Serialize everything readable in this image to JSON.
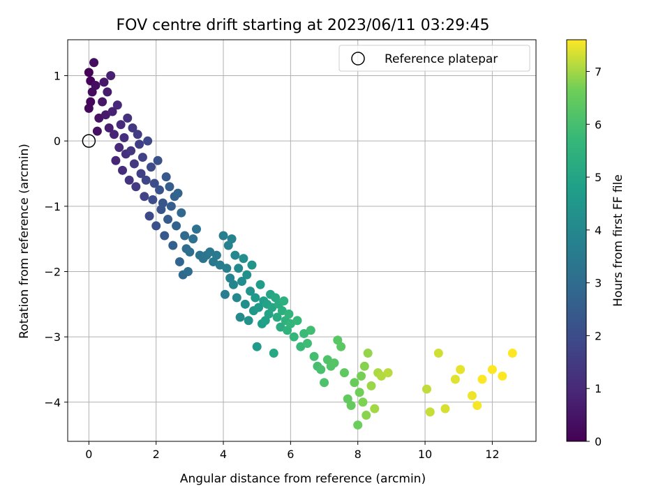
{
  "chart_data": {
    "type": "scatter",
    "title": "FOV centre drift starting at 2023/06/11 03:29:45",
    "xlabel": "Angular distance from reference (arcmin)",
    "ylabel": "Rotation from reference (arcmin)",
    "xlim": [
      -0.63,
      13.3
    ],
    "ylim": [
      -4.6,
      1.55
    ],
    "xticks": [
      0,
      2,
      4,
      6,
      8,
      10,
      12
    ],
    "yticks": [
      -4,
      -3,
      -2,
      -1,
      0,
      1
    ],
    "xtick_labels": [
      "0",
      "2",
      "4",
      "6",
      "8",
      "10",
      "12"
    ],
    "ytick_labels": [
      "−4",
      "−3",
      "−2",
      "−1",
      "0",
      "1"
    ],
    "grid": true,
    "legend": {
      "placement": "top-right",
      "entries": [
        {
          "label": "Reference platepar",
          "marker": "open-circle"
        }
      ]
    },
    "reference_point": {
      "x": 0,
      "y": 0
    },
    "colorbar": {
      "label": "Hours from first FF file",
      "colormap": "viridis",
      "range": [
        0,
        7.6
      ],
      "ticks": [
        0,
        1,
        2,
        3,
        4,
        5,
        6,
        7
      ],
      "tick_labels": [
        "0",
        "1",
        "2",
        "3",
        "4",
        "5",
        "6",
        "7"
      ]
    },
    "series": [
      {
        "name": "FOV centre drift",
        "columns": [
          "x",
          "y",
          "hours"
        ],
        "points": [
          [
            0.0,
            1.05,
            0.05
          ],
          [
            0.05,
            0.92,
            0.1
          ],
          [
            0.05,
            0.6,
            0.15
          ],
          [
            0.0,
            0.5,
            0.2
          ],
          [
            0.1,
            0.75,
            0.25
          ],
          [
            0.15,
            1.2,
            0.3
          ],
          [
            0.2,
            0.85,
            0.35
          ],
          [
            0.25,
            0.15,
            0.4
          ],
          [
            0.3,
            0.35,
            0.45
          ],
          [
            0.4,
            0.6,
            0.5
          ],
          [
            0.45,
            0.9,
            0.55
          ],
          [
            0.5,
            0.4,
            0.6
          ],
          [
            0.55,
            0.75,
            0.65
          ],
          [
            0.6,
            0.2,
            0.7
          ],
          [
            0.65,
            1.0,
            0.75
          ],
          [
            0.7,
            0.45,
            0.8
          ],
          [
            0.75,
            0.1,
            0.85
          ],
          [
            0.8,
            -0.3,
            0.9
          ],
          [
            0.85,
            0.55,
            0.95
          ],
          [
            0.9,
            -0.1,
            1.0
          ],
          [
            0.95,
            0.25,
            1.05
          ],
          [
            1.0,
            -0.45,
            1.1
          ],
          [
            1.05,
            0.05,
            1.15
          ],
          [
            1.1,
            -0.2,
            1.2
          ],
          [
            1.15,
            0.35,
            1.25
          ],
          [
            1.2,
            -0.6,
            1.3
          ],
          [
            1.25,
            -0.15,
            1.35
          ],
          [
            1.3,
            0.2,
            1.4
          ],
          [
            1.35,
            -0.35,
            1.45
          ],
          [
            1.4,
            -0.7,
            1.5
          ],
          [
            1.45,
            0.1,
            1.55
          ],
          [
            1.5,
            -0.05,
            1.6
          ],
          [
            1.55,
            -0.5,
            1.65
          ],
          [
            1.6,
            -0.25,
            1.7
          ],
          [
            1.65,
            -0.85,
            1.75
          ],
          [
            1.7,
            -0.6,
            1.8
          ],
          [
            1.75,
            0.0,
            1.85
          ],
          [
            1.8,
            -1.15,
            1.9
          ],
          [
            1.85,
            -0.4,
            1.95
          ],
          [
            1.9,
            -0.9,
            2.0
          ],
          [
            1.95,
            -0.65,
            2.05
          ],
          [
            2.0,
            -1.3,
            2.1
          ],
          [
            2.05,
            -0.3,
            2.15
          ],
          [
            2.1,
            -0.75,
            2.2
          ],
          [
            2.15,
            -1.05,
            2.25
          ],
          [
            2.2,
            -0.95,
            2.3
          ],
          [
            2.25,
            -1.45,
            2.35
          ],
          [
            2.3,
            -0.55,
            2.4
          ],
          [
            2.35,
            -1.2,
            2.45
          ],
          [
            2.4,
            -0.7,
            2.5
          ],
          [
            2.45,
            -1.0,
            2.55
          ],
          [
            2.5,
            -1.6,
            2.6
          ],
          [
            2.55,
            -0.85,
            2.65
          ],
          [
            2.6,
            -1.3,
            2.7
          ],
          [
            2.65,
            -0.8,
            2.75
          ],
          [
            2.7,
            -1.85,
            2.8
          ],
          [
            2.75,
            -1.1,
            2.85
          ],
          [
            2.8,
            -2.05,
            2.9
          ],
          [
            2.85,
            -1.45,
            2.95
          ],
          [
            2.9,
            -1.65,
            3.0
          ],
          [
            2.95,
            -2.0,
            3.05
          ],
          [
            3.0,
            -1.7,
            3.1
          ],
          [
            3.1,
            -1.5,
            3.15
          ],
          [
            3.2,
            -1.35,
            3.2
          ],
          [
            3.3,
            -1.75,
            3.25
          ],
          [
            3.4,
            -1.8,
            3.3
          ],
          [
            3.5,
            -1.75,
            3.35
          ],
          [
            3.6,
            -1.7,
            3.4
          ],
          [
            3.7,
            -1.85,
            3.45
          ],
          [
            3.8,
            -1.75,
            3.5
          ],
          [
            3.9,
            -1.9,
            3.55
          ],
          [
            4.0,
            -1.45,
            3.6
          ],
          [
            4.05,
            -2.35,
            3.65
          ],
          [
            4.1,
            -1.95,
            3.7
          ],
          [
            4.15,
            -1.6,
            3.75
          ],
          [
            4.2,
            -2.1,
            3.8
          ],
          [
            4.25,
            -1.5,
            3.85
          ],
          [
            4.3,
            -2.2,
            3.9
          ],
          [
            4.35,
            -1.75,
            3.95
          ],
          [
            4.4,
            -2.4,
            4.0
          ],
          [
            4.45,
            -1.95,
            4.05
          ],
          [
            4.5,
            -2.7,
            4.1
          ],
          [
            4.55,
            -2.15,
            4.15
          ],
          [
            4.6,
            -1.8,
            4.2
          ],
          [
            4.65,
            -2.5,
            4.25
          ],
          [
            4.7,
            -2.05,
            4.3
          ],
          [
            4.75,
            -2.75,
            4.35
          ],
          [
            4.8,
            -2.3,
            4.4
          ],
          [
            4.85,
            -1.9,
            4.45
          ],
          [
            4.9,
            -2.6,
            4.5
          ],
          [
            4.95,
            -2.4,
            4.55
          ],
          [
            5.0,
            -3.15,
            4.6
          ],
          [
            5.05,
            -2.55,
            4.65
          ],
          [
            5.1,
            -2.2,
            4.7
          ],
          [
            5.15,
            -2.8,
            4.75
          ],
          [
            5.2,
            -2.45,
            4.8
          ],
          [
            5.25,
            -2.75,
            4.85
          ],
          [
            5.3,
            -2.5,
            4.9
          ],
          [
            5.35,
            -2.65,
            4.95
          ],
          [
            5.4,
            -2.35,
            5.0
          ],
          [
            5.45,
            -2.55,
            5.05
          ],
          [
            5.5,
            -3.25,
            5.1
          ],
          [
            5.55,
            -2.4,
            5.15
          ],
          [
            5.6,
            -2.7,
            5.2
          ],
          [
            5.65,
            -2.5,
            5.25
          ],
          [
            5.7,
            -2.85,
            5.3
          ],
          [
            5.75,
            -2.6,
            5.35
          ],
          [
            5.8,
            -2.45,
            5.4
          ],
          [
            5.85,
            -2.75,
            5.45
          ],
          [
            5.9,
            -2.9,
            5.5
          ],
          [
            5.95,
            -2.65,
            5.55
          ],
          [
            6.0,
            -2.8,
            5.6
          ],
          [
            6.1,
            -3.0,
            5.65
          ],
          [
            6.2,
            -2.75,
            5.7
          ],
          [
            6.3,
            -3.15,
            5.75
          ],
          [
            6.4,
            -2.95,
            5.8
          ],
          [
            6.5,
            -3.1,
            5.85
          ],
          [
            6.6,
            -2.9,
            5.9
          ],
          [
            6.7,
            -3.3,
            5.95
          ],
          [
            6.8,
            -3.45,
            6.0
          ],
          [
            6.9,
            -3.5,
            6.05
          ],
          [
            7.0,
            -3.7,
            6.1
          ],
          [
            7.1,
            -3.35,
            6.15
          ],
          [
            7.2,
            -3.45,
            6.2
          ],
          [
            7.3,
            -3.4,
            6.25
          ],
          [
            7.4,
            -3.05,
            6.3
          ],
          [
            7.5,
            -3.15,
            6.35
          ],
          [
            7.6,
            -3.55,
            6.4
          ],
          [
            7.7,
            -3.95,
            6.45
          ],
          [
            7.8,
            -4.05,
            6.5
          ],
          [
            7.9,
            -3.7,
            6.55
          ],
          [
            8.0,
            -4.35,
            6.6
          ],
          [
            8.05,
            -3.85,
            6.65
          ],
          [
            8.1,
            -3.6,
            6.7
          ],
          [
            8.15,
            -4.0,
            6.75
          ],
          [
            8.2,
            -3.45,
            6.8
          ],
          [
            8.25,
            -4.2,
            6.85
          ],
          [
            8.3,
            -3.25,
            6.9
          ],
          [
            8.4,
            -3.75,
            6.95
          ],
          [
            8.5,
            -4.1,
            7.0
          ],
          [
            8.6,
            -3.55,
            7.05
          ],
          [
            8.7,
            -3.6,
            7.1
          ],
          [
            8.9,
            -3.55,
            7.15
          ],
          [
            10.05,
            -3.8,
            7.2
          ],
          [
            10.15,
            -4.15,
            7.25
          ],
          [
            10.4,
            -3.25,
            7.3
          ],
          [
            10.6,
            -4.1,
            7.35
          ],
          [
            10.9,
            -3.65,
            7.4
          ],
          [
            11.05,
            -3.5,
            7.45
          ],
          [
            11.4,
            -3.9,
            7.5
          ],
          [
            11.55,
            -4.05,
            7.55
          ],
          [
            11.7,
            -3.65,
            7.6
          ],
          [
            12.0,
            -3.5,
            7.6
          ],
          [
            12.3,
            -3.6,
            7.6
          ],
          [
            12.6,
            -3.25,
            7.6
          ]
        ]
      }
    ]
  }
}
